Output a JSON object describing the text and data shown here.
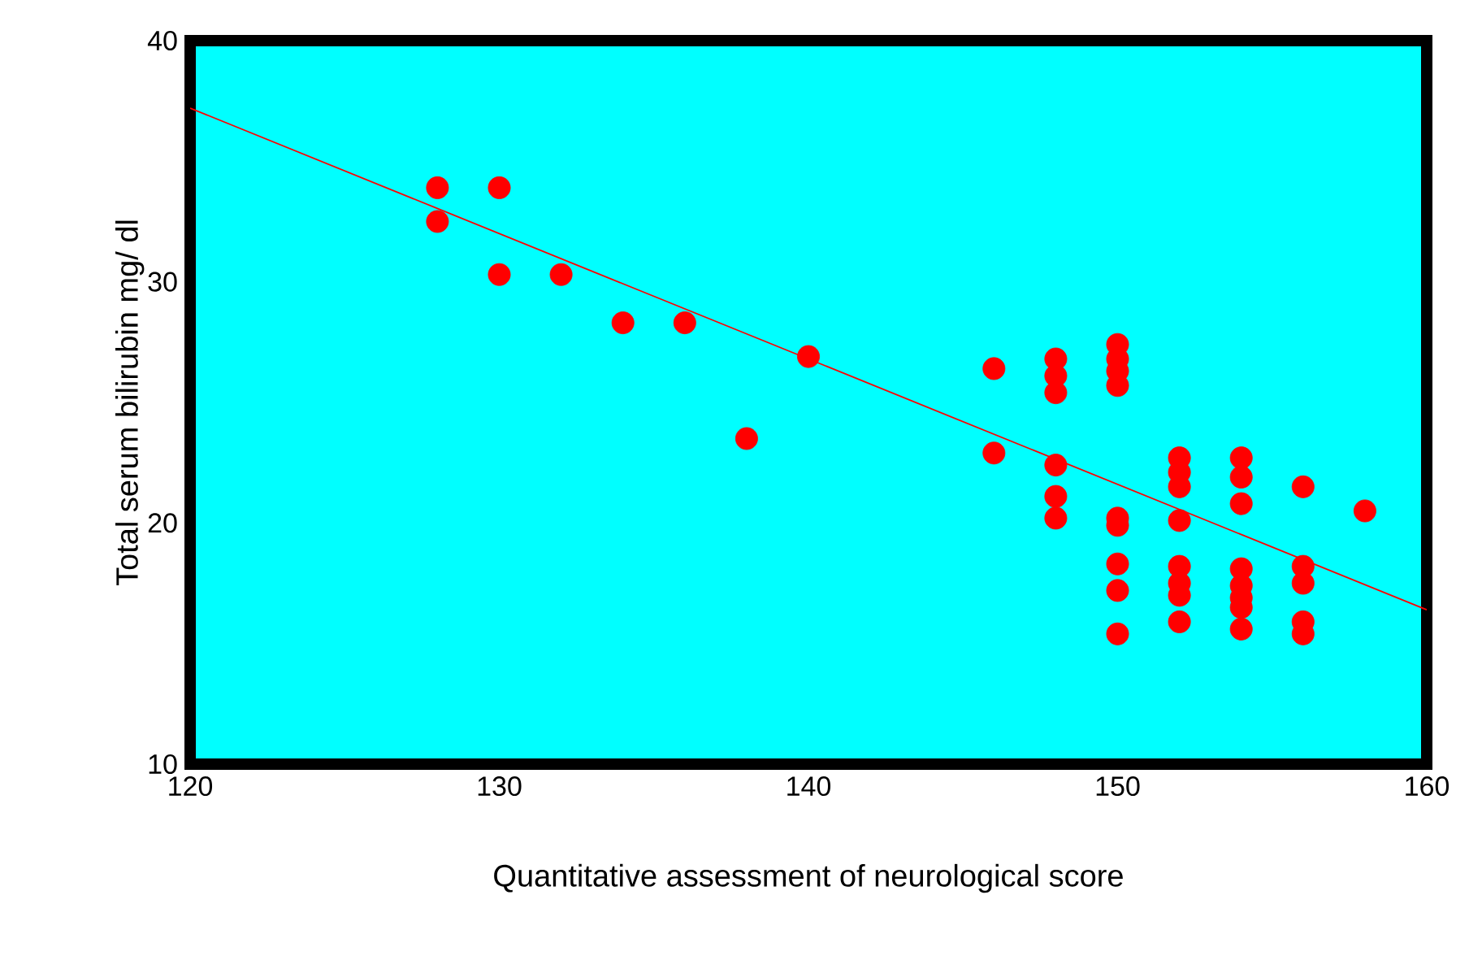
{
  "chart_data": {
    "type": "scatter",
    "xlabel": "Quantitative assessment of neurological score",
    "ylabel": "Total serum bilirubin mg/ dl",
    "xlim": [
      120,
      160
    ],
    "ylim": [
      10,
      40
    ],
    "xticks": [
      120,
      130,
      140,
      150,
      160
    ],
    "yticks": [
      10,
      20,
      30,
      40
    ],
    "grid": false,
    "series": [
      {
        "marker": "circle",
        "color": "#ff0000",
        "x": [
          128,
          128,
          130,
          130,
          132,
          134,
          136,
          138,
          140,
          146,
          146,
          148,
          148,
          148,
          148,
          148,
          148,
          150,
          150,
          150,
          150,
          150,
          150,
          150,
          150,
          150,
          152,
          152,
          152,
          152,
          152,
          152,
          152,
          152,
          154,
          154,
          154,
          154,
          154,
          154,
          154,
          154,
          156,
          156,
          156,
          156,
          156,
          158
        ],
        "values": [
          33.9,
          32.5,
          33.9,
          30.3,
          30.3,
          28.3,
          28.3,
          23.5,
          26.9,
          26.4,
          22.9,
          26.8,
          26.1,
          25.4,
          22.4,
          21.1,
          20.2,
          27.4,
          26.8,
          26.3,
          25.7,
          20.2,
          19.9,
          18.3,
          17.2,
          15.4,
          22.7,
          22.1,
          21.5,
          20.1,
          18.2,
          17.5,
          17.0,
          15.9,
          22.7,
          21.9,
          20.8,
          18.1,
          17.4,
          16.9,
          16.5,
          15.6,
          21.5,
          18.2,
          17.5,
          15.9,
          15.4,
          20.5
        ]
      },
      {
        "type": "line",
        "color": "#ff0000",
        "x": [
          120,
          160
        ],
        "values": [
          37.2,
          16.4
        ],
        "line_style": "solid",
        "marker": "none"
      }
    ]
  }
}
